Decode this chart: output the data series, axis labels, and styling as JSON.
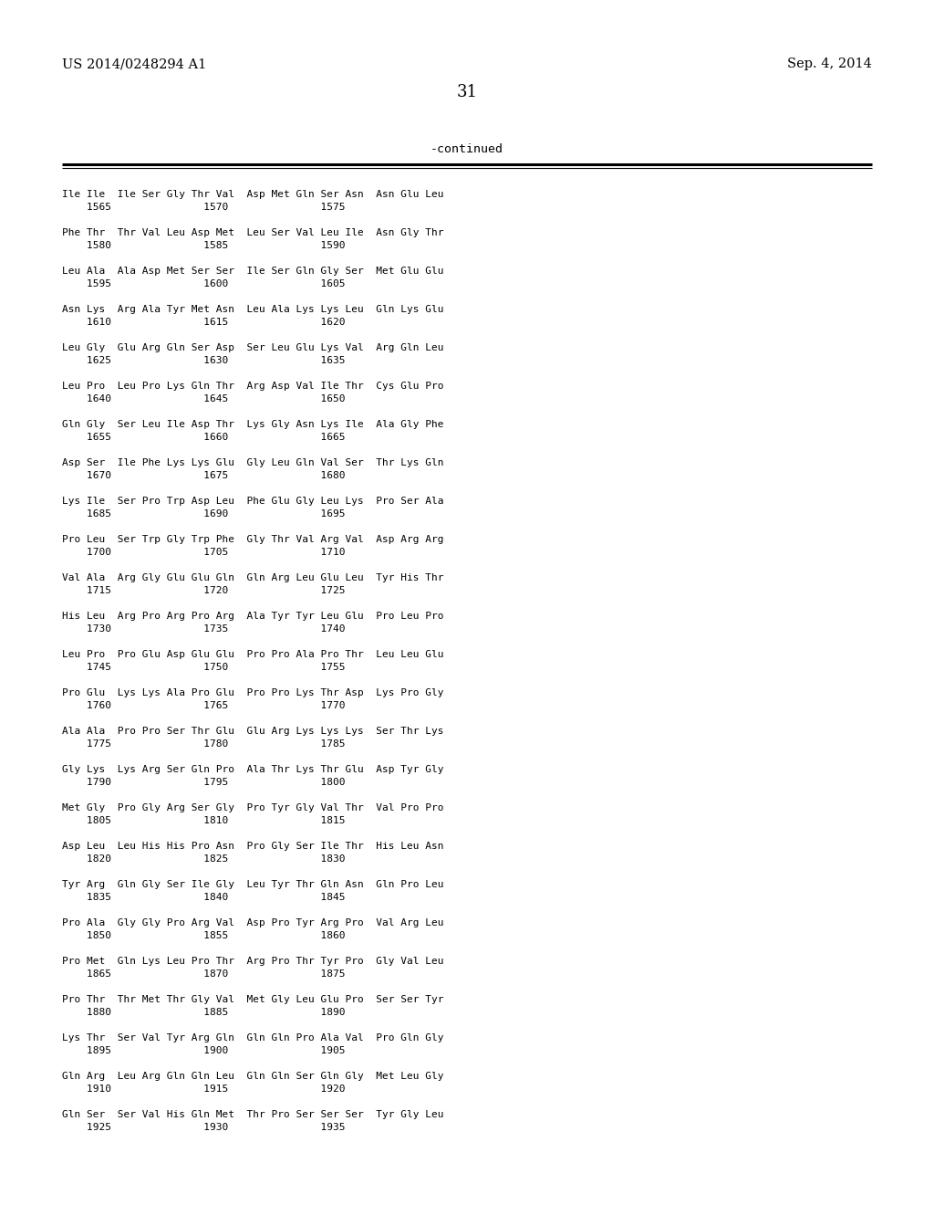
{
  "header_left": "US 2014/0248294 A1",
  "header_right": "Sep. 4, 2014",
  "page_number": "31",
  "continued_text": "-continued",
  "background_color": "#ffffff",
  "text_color": "#000000",
  "sequence_data": [
    [
      "Ile Ile  Ile Ser Gly Thr Val  Asp Met Gln Ser Asn  Asn Glu Leu",
      "    1565               1570               1575"
    ],
    [
      "Phe Thr  Thr Val Leu Asp Met  Leu Ser Val Leu Ile  Asn Gly Thr",
      "    1580               1585               1590"
    ],
    [
      "Leu Ala  Ala Asp Met Ser Ser  Ile Ser Gln Gly Ser  Met Glu Glu",
      "    1595               1600               1605"
    ],
    [
      "Asn Lys  Arg Ala Tyr Met Asn  Leu Ala Lys Lys Leu  Gln Lys Glu",
      "    1610               1615               1620"
    ],
    [
      "Leu Gly  Glu Arg Gln Ser Asp  Ser Leu Glu Lys Val  Arg Gln Leu",
      "    1625               1630               1635"
    ],
    [
      "Leu Pro  Leu Pro Lys Gln Thr  Arg Asp Val Ile Thr  Cys Glu Pro",
      "    1640               1645               1650"
    ],
    [
      "Gln Gly  Ser Leu Ile Asp Thr  Lys Gly Asn Lys Ile  Ala Gly Phe",
      "    1655               1660               1665"
    ],
    [
      "Asp Ser  Ile Phe Lys Lys Glu  Gly Leu Gln Val Ser  Thr Lys Gln",
      "    1670               1675               1680"
    ],
    [
      "Lys Ile  Ser Pro Trp Asp Leu  Phe Glu Gly Leu Lys  Pro Ser Ala",
      "    1685               1690               1695"
    ],
    [
      "Pro Leu  Ser Trp Gly Trp Phe  Gly Thr Val Arg Val  Asp Arg Arg",
      "    1700               1705               1710"
    ],
    [
      "Val Ala  Arg Gly Glu Glu Gln  Gln Arg Leu Glu Leu  Tyr His Thr",
      "    1715               1720               1725"
    ],
    [
      "His Leu  Arg Pro Arg Pro Arg  Ala Tyr Tyr Leu Glu  Pro Leu Pro",
      "    1730               1735               1740"
    ],
    [
      "Leu Pro  Pro Glu Asp Glu Glu  Pro Pro Ala Pro Thr  Leu Leu Glu",
      "    1745               1750               1755"
    ],
    [
      "Pro Glu  Lys Lys Ala Pro Glu  Pro Pro Lys Thr Asp  Lys Pro Gly",
      "    1760               1765               1770"
    ],
    [
      "Ala Ala  Pro Pro Ser Thr Glu  Glu Arg Lys Lys Lys  Ser Thr Lys",
      "    1775               1780               1785"
    ],
    [
      "Gly Lys  Lys Arg Ser Gln Pro  Ala Thr Lys Thr Glu  Asp Tyr Gly",
      "    1790               1795               1800"
    ],
    [
      "Met Gly  Pro Gly Arg Ser Gly  Pro Tyr Gly Val Thr  Val Pro Pro",
      "    1805               1810               1815"
    ],
    [
      "Asp Leu  Leu His His Pro Asn  Pro Gly Ser Ile Thr  His Leu Asn",
      "    1820               1825               1830"
    ],
    [
      "Tyr Arg  Gln Gly Ser Ile Gly  Leu Tyr Thr Gln Asn  Gln Pro Leu",
      "    1835               1840               1845"
    ],
    [
      "Pro Ala  Gly Gly Pro Arg Val  Asp Pro Tyr Arg Pro  Val Arg Leu",
      "    1850               1855               1860"
    ],
    [
      "Pro Met  Gln Lys Leu Pro Thr  Arg Pro Thr Tyr Pro  Gly Val Leu",
      "    1865               1870               1875"
    ],
    [
      "Pro Thr  Thr Met Thr Gly Val  Met Gly Leu Glu Pro  Ser Ser Tyr",
      "    1880               1885               1890"
    ],
    [
      "Lys Thr  Ser Val Tyr Arg Gln  Gln Gln Pro Ala Val  Pro Gln Gly",
      "    1895               1900               1905"
    ],
    [
      "Gln Arg  Leu Arg Gln Gln Leu  Gln Gln Ser Gln Gly  Met Leu Gly",
      "    1910               1915               1920"
    ],
    [
      "Gln Ser  Ser Val His Gln Met  Thr Pro Ser Ser Ser  Tyr Gly Leu",
      "    1925               1930               1935"
    ]
  ]
}
